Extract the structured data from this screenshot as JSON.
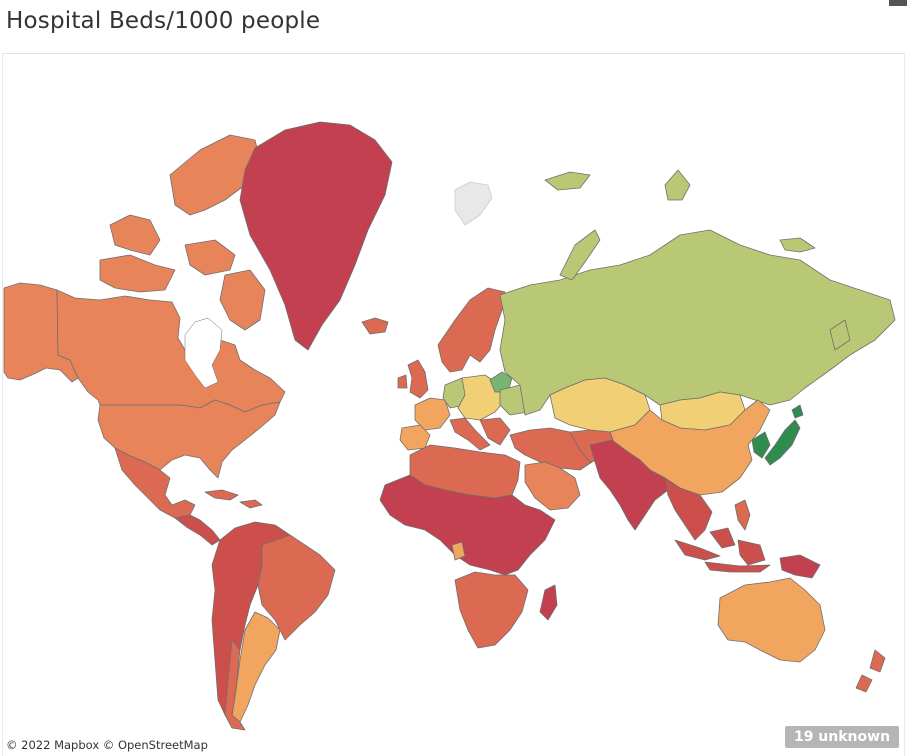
{
  "title": "Hospital Beds/1000 people",
  "attribution": "© 2022 Mapbox © OpenStreetMap",
  "unknown_badge": "19 unknown",
  "colors": {
    "darkest_red": "#c2404f",
    "dark_red": "#cc4f4c",
    "red_orange": "#dc6952",
    "orange": "#e8845a",
    "light_orange": "#f2a55e",
    "pale_yellow": "#f1cf75",
    "yellow_green": "#b9c875",
    "green": "#77b571",
    "dark_green": "#2f8c4e",
    "no_data": "#e8e8e8",
    "border": "#777777"
  },
  "regions": [
    {
      "name": "Greenland",
      "color": "darkest_red"
    },
    {
      "name": "Canada",
      "color": "orange"
    },
    {
      "name": "Alaska",
      "color": "orange"
    },
    {
      "name": "United States",
      "color": "orange"
    },
    {
      "name": "Mexico",
      "color": "red_orange"
    },
    {
      "name": "Central America",
      "color": "dark_red"
    },
    {
      "name": "Brazil",
      "color": "red_orange"
    },
    {
      "name": "Andean South America",
      "color": "dark_red"
    },
    {
      "name": "Argentina",
      "color": "light_orange"
    },
    {
      "name": "Chile",
      "color": "red_orange"
    },
    {
      "name": "Russia",
      "color": "yellow_green"
    },
    {
      "name": "Kazakhstan",
      "color": "pale_yellow"
    },
    {
      "name": "Mongolia",
      "color": "pale_yellow"
    },
    {
      "name": "China",
      "color": "light_orange"
    },
    {
      "name": "Japan",
      "color": "dark_green"
    },
    {
      "name": "Korea",
      "color": "dark_green"
    },
    {
      "name": "India",
      "color": "darkest_red"
    },
    {
      "name": "Middle East",
      "color": "red_orange"
    },
    {
      "name": "Saudi Arabia",
      "color": "orange"
    },
    {
      "name": "North Africa",
      "color": "red_orange"
    },
    {
      "name": "Central Africa",
      "color": "darkest_red"
    },
    {
      "name": "Southern Africa",
      "color": "red_orange"
    },
    {
      "name": "Madagascar",
      "color": "darkest_red"
    },
    {
      "name": "Gabon",
      "color": "light_orange"
    },
    {
      "name": "Australia",
      "color": "light_orange"
    },
    {
      "name": "New Zealand",
      "color": "red_orange"
    },
    {
      "name": "Scandinavia",
      "color": "red_orange"
    },
    {
      "name": "Belarus",
      "color": "green"
    },
    {
      "name": "Western Europe",
      "color": "light_orange"
    },
    {
      "name": "Central Europe",
      "color": "pale_yellow"
    },
    {
      "name": "Germany",
      "color": "yellow_green"
    },
    {
      "name": "Iceland",
      "color": "red_orange"
    },
    {
      "name": "Indonesia",
      "color": "dark_red"
    },
    {
      "name": "Southeast Asia",
      "color": "dark_red"
    },
    {
      "name": "Svalbard",
      "color": "no_data"
    }
  ]
}
